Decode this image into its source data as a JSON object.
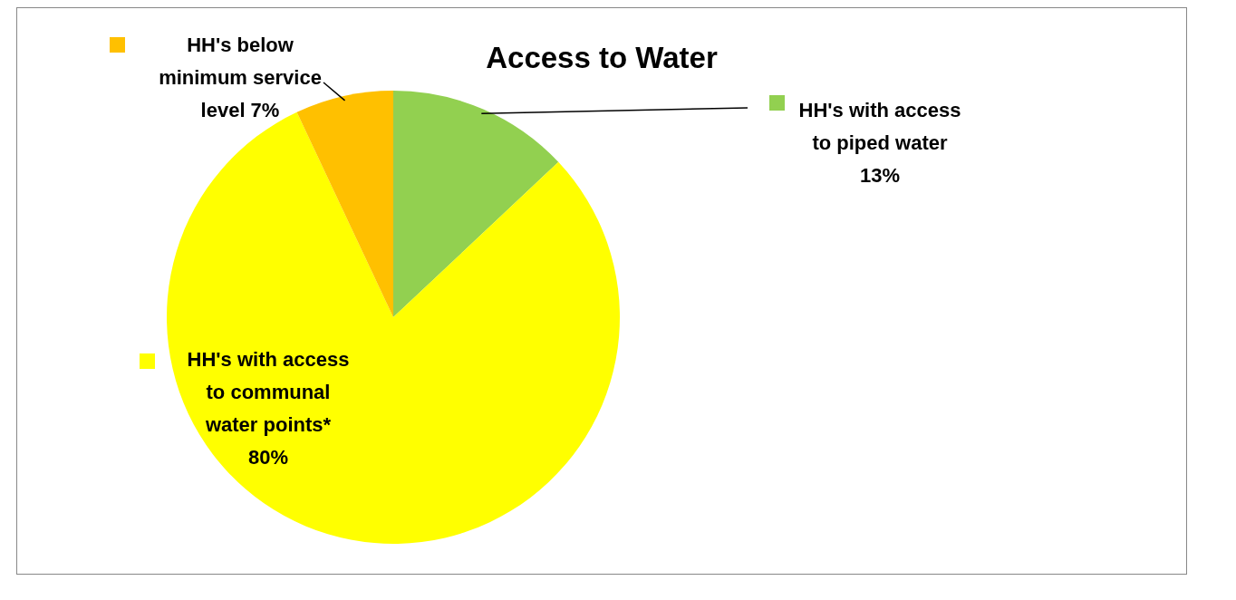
{
  "chart_data": {
    "type": "pie",
    "title": "Access to Water",
    "categories": [
      "HH's with access to piped water",
      "HH's with access to communal water points*",
      "HH's below minimum service level"
    ],
    "values": [
      13,
      80,
      7
    ],
    "colors": [
      "#92d050",
      "#ffff00",
      "#ffc000"
    ],
    "value_labels": [
      "13%",
      "80%",
      "7%"
    ],
    "legend": "top right"
  }
}
